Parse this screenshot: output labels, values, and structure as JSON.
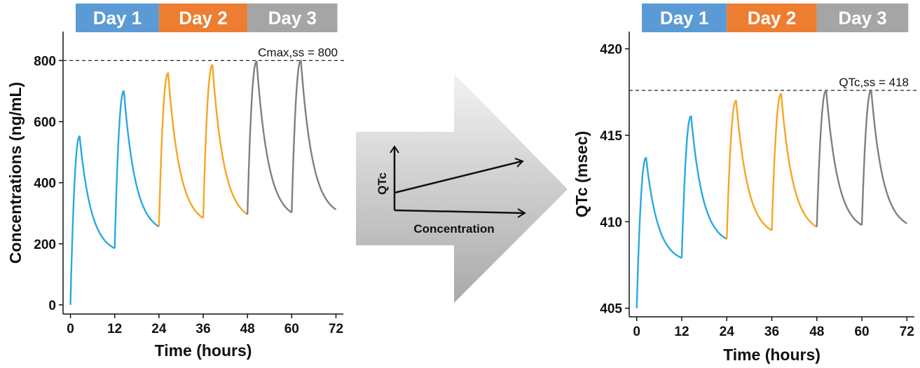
{
  "day_bands": [
    {
      "label": "Day 1",
      "color": "#5b9bd5",
      "from": 0,
      "to": 24
    },
    {
      "label": "Day 2",
      "color": "#ed7d31",
      "from": 24,
      "to": 48
    },
    {
      "label": "Day 3",
      "color": "#a5a5a5",
      "from": 48,
      "to": 72
    }
  ],
  "series_colors": [
    "#29a9e1",
    "#f5a623",
    "#808080"
  ],
  "chart_data": [
    {
      "type": "line",
      "xlabel": "Time (hours)",
      "ylabel": "Concentrations (ng/mL)",
      "xlim": [
        -2,
        74
      ],
      "ylim": [
        -30,
        895
      ],
      "xticks": [
        0,
        12,
        24,
        36,
        48,
        60,
        72
      ],
      "yticks": [
        0,
        200,
        400,
        600,
        800
      ],
      "reference_line": {
        "y": 800,
        "label": "Cmax,ss = 800"
      },
      "dosing_interval_hours": 12,
      "time_to_peak_hours": 2.5,
      "peaks": [
        552,
        700,
        759,
        785,
        797,
        800
      ],
      "troughs": [
        185,
        256,
        284,
        296,
        302,
        312
      ],
      "start_value": 0,
      "end_time": 72
    },
    {
      "type": "line",
      "xlabel": "Time (hours)",
      "ylabel": "QTc (msec)",
      "xlim": [
        -2,
        74
      ],
      "ylim": [
        404.5,
        421
      ],
      "xticks": [
        0,
        12,
        24,
        36,
        48,
        60,
        72
      ],
      "yticks": [
        405,
        410,
        415,
        420
      ],
      "reference_line": {
        "y": 417.6,
        "label": "QTc,ss = 418"
      },
      "dosing_interval_hours": 12,
      "time_to_peak_hours": 2.5,
      "peaks": [
        413.7,
        416.1,
        417.0,
        417.4,
        417.6,
        417.6
      ],
      "troughs": [
        407.9,
        409.0,
        409.5,
        409.7,
        409.8,
        409.9
      ],
      "start_value": 405,
      "end_time": 72
    }
  ],
  "arrow_inset": {
    "ylabel": "QTc",
    "xlabel": "Concentration"
  }
}
